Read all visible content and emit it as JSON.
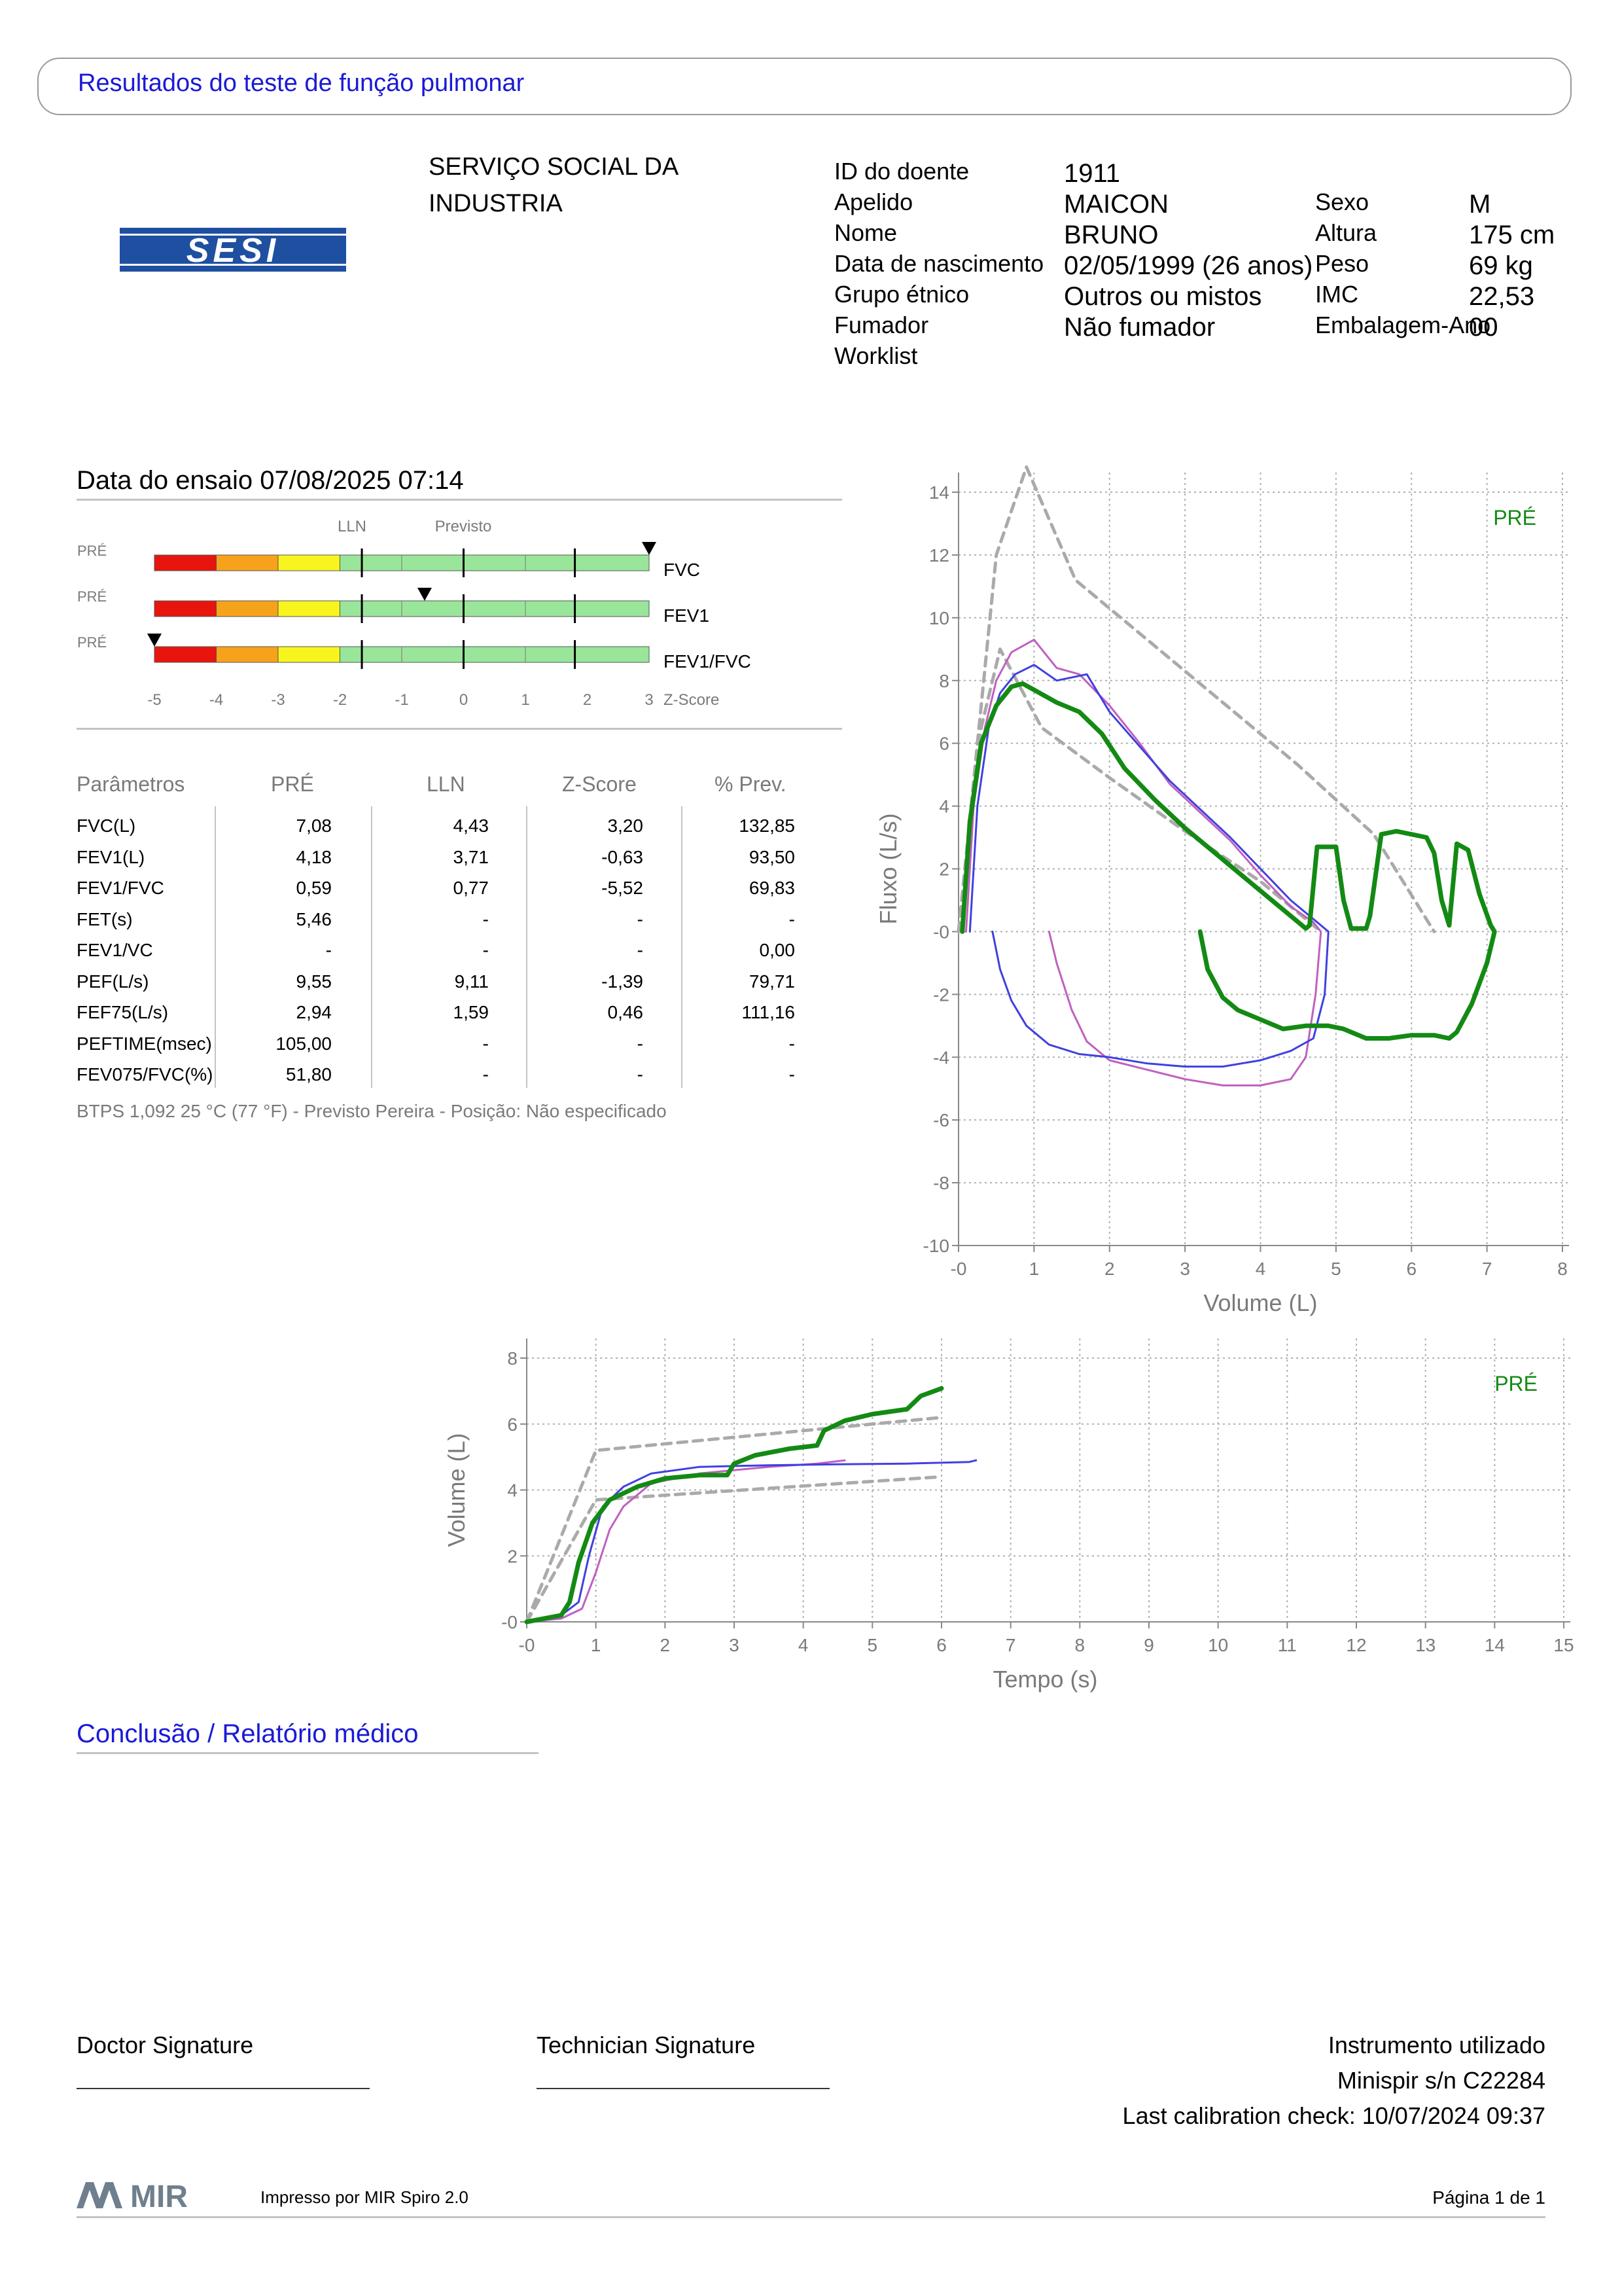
{
  "header": {
    "title": "Resultados do teste de função pulmonar"
  },
  "logo": {
    "text": "SESI",
    "color": "#1e4fa0"
  },
  "organization": {
    "line1": "SERVIÇO SOCIAL DA",
    "line2": "INDUSTRIA"
  },
  "patient": {
    "left_labels": [
      "ID do doente",
      "Apelido",
      "Nome",
      "Data de nascimento",
      "Grupo étnico",
      "Fumador",
      "Worklist"
    ],
    "left_values": [
      "1911",
      "MAICON",
      "BRUNO",
      "02/05/1999 (26 anos)",
      "Outros ou mistos",
      "Não fumador",
      ""
    ],
    "right_labels": [
      "Sexo",
      "Altura",
      "Peso",
      "IMC",
      "Embalagem-Ano"
    ],
    "right_values": [
      "M",
      "175 cm",
      "69 kg",
      "22,53",
      "00"
    ]
  },
  "test": {
    "date_label": "Data do ensaio 07/08/2025 07:14"
  },
  "zscore": {
    "lln_label": "LLN",
    "pred_label": "Previsto",
    "axis_title": "Z-Score",
    "ticks": [
      "-5",
      "-4",
      "-3",
      "-2",
      "-1",
      "0",
      "1",
      "2",
      "3"
    ],
    "rows": [
      {
        "phase": "PRÉ",
        "name": "FVC",
        "zscore": 3.2
      },
      {
        "phase": "PRÉ",
        "name": "FEV1",
        "zscore": -0.63
      },
      {
        "phase": "PRÉ",
        "name": "FEV1/FVC",
        "zscore": -5.52
      }
    ],
    "colors": {
      "red": "#e8150e",
      "orange": "#f7a21b",
      "yellow": "#f8f51e",
      "green": "#99e69a"
    }
  },
  "params": {
    "headers": [
      "Parâmetros",
      "PRÉ",
      "LLN",
      "Z-Score",
      "% Prev."
    ],
    "rows": [
      {
        "name": "FVC(L)",
        "pre": "7,08",
        "lln": "4,43",
        "z": "3,20",
        "prev": "132,85"
      },
      {
        "name": "FEV1(L)",
        "pre": "4,18",
        "lln": "3,71",
        "z": "-0,63",
        "prev": "93,50"
      },
      {
        "name": "FEV1/FVC",
        "pre": "0,59",
        "lln": "0,77",
        "z": "-5,52",
        "prev": "69,83"
      },
      {
        "name": "FET(s)",
        "pre": "5,46",
        "lln": "-",
        "z": "-",
        "prev": "-"
      },
      {
        "name": "FEV1/VC",
        "pre": "-",
        "lln": "-",
        "z": "-",
        "prev": "0,00"
      },
      {
        "name": "PEF(L/s)",
        "pre": "9,55",
        "lln": "9,11",
        "z": "-1,39",
        "prev": "79,71"
      },
      {
        "name": "FEF75(L/s)",
        "pre": "2,94",
        "lln": "1,59",
        "z": "0,46",
        "prev": "111,16"
      },
      {
        "name": "PEFTIME(msec)",
        "pre": "105,00",
        "lln": "-",
        "z": "-",
        "prev": "-"
      },
      {
        "name": "FEV075/FVC(%)",
        "pre": "51,80",
        "lln": "-",
        "z": "-",
        "prev": "-"
      }
    ]
  },
  "btps": "BTPS 1,092 25 °C (77 °F) - Previsto Pereira - Posição: Não especificado",
  "chart_data": [
    {
      "type": "line",
      "title": "",
      "xlabel": "Volume (L)",
      "ylabel": "Fluxo (L/s)",
      "xlim": [
        0,
        8
      ],
      "ylim": [
        -10,
        14
      ],
      "xticks": [
        "-0",
        "1",
        "2",
        "3",
        "4",
        "5",
        "6",
        "7",
        "8"
      ],
      "yticks": [
        "-10",
        "-8",
        "-6",
        "-4",
        "-2",
        "-0",
        "2",
        "4",
        "6",
        "8",
        "10",
        "12",
        "14"
      ],
      "annotation": "PRÉ",
      "grid": true,
      "series": [
        {
          "color": "#aaaaaa",
          "dashed": true,
          "x": [
            0,
            0.5,
            0.9,
            1.55,
            2.5,
            3.5,
            4.5,
            5.5,
            6.3
          ],
          "y": [
            0,
            12,
            14.8,
            11.2,
            9.3,
            7.3,
            5.3,
            3.1,
            0
          ]
        },
        {
          "color": "#aaaaaa",
          "dashed": true,
          "x": [
            0,
            0.3,
            0.55,
            1.1,
            2.0,
            3.0,
            4.0,
            4.8
          ],
          "y": [
            0,
            6.5,
            9.0,
            6.5,
            4.9,
            3.2,
            1.6,
            0
          ]
        },
        {
          "color": "#c060c0",
          "x": [
            0.1,
            0.2,
            0.35,
            0.5,
            0.7,
            1.0,
            1.3,
            1.6,
            2.0,
            2.4,
            2.8,
            3.2,
            3.6,
            4.0,
            4.4,
            4.7,
            4.8,
            4.73,
            4.6,
            4.4,
            4.0,
            3.5,
            3.0,
            2.5,
            2.0,
            1.7,
            1.5,
            1.3,
            1.2
          ],
          "y": [
            0,
            4,
            6.5,
            8.0,
            8.9,
            9.3,
            8.4,
            8.2,
            7.2,
            6.0,
            4.7,
            3.8,
            2.9,
            1.8,
            0.8,
            0.3,
            0,
            -2.0,
            -4.0,
            -4.7,
            -4.9,
            -4.9,
            -4.7,
            -4.4,
            -4.1,
            -3.5,
            -2.5,
            -1.0,
            0
          ]
        },
        {
          "color": "#4040e0",
          "x": [
            0.15,
            0.25,
            0.4,
            0.55,
            0.75,
            1.0,
            1.3,
            1.7,
            2.0,
            2.4,
            2.8,
            3.2,
            3.6,
            4.0,
            4.4,
            4.7,
            4.9,
            4.85,
            4.7,
            4.4,
            4.0,
            3.5,
            3.0,
            2.5,
            2.0,
            1.6,
            1.2,
            0.9,
            0.7,
            0.55,
            0.45
          ],
          "y": [
            0,
            4,
            6.5,
            7.6,
            8.2,
            8.5,
            8.0,
            8.2,
            7.0,
            5.9,
            4.8,
            3.9,
            3.0,
            2.0,
            1.0,
            0.4,
            0,
            -2.0,
            -3.4,
            -3.8,
            -4.1,
            -4.3,
            -4.3,
            -4.2,
            -4.0,
            -3.9,
            -3.6,
            -3.0,
            -2.2,
            -1.2,
            0
          ]
        },
        {
          "color": "#138a13",
          "bold": true,
          "x": [
            0.05,
            0.15,
            0.3,
            0.5,
            0.7,
            0.85,
            1.0,
            1.3,
            1.6,
            1.9,
            2.2,
            2.6,
            3.0,
            3.4,
            3.8,
            4.2,
            4.4,
            4.5,
            4.6,
            4.65,
            4.75,
            5.0,
            5.1,
            5.2,
            5.4,
            5.45,
            5.6,
            5.8,
            6.2,
            6.3,
            6.4,
            6.5,
            6.6,
            6.75,
            6.9,
            7.05,
            7.1,
            7.0,
            6.8,
            6.6,
            6.5,
            6.3,
            6.0,
            5.7,
            5.4,
            5.1,
            4.9,
            4.6,
            4.3,
            4.0,
            3.7,
            3.5,
            3.3,
            3.2
          ],
          "y": [
            0,
            3.5,
            6.0,
            7.2,
            7.8,
            7.9,
            7.7,
            7.3,
            7.0,
            6.3,
            5.2,
            4.2,
            3.3,
            2.5,
            1.7,
            0.9,
            0.5,
            0.3,
            0.1,
            0.2,
            2.7,
            2.7,
            1.0,
            0.1,
            0.1,
            0.5,
            3.1,
            3.2,
            3.0,
            2.5,
            1.0,
            0.2,
            2.8,
            2.6,
            1.2,
            0.2,
            0,
            -1.0,
            -2.3,
            -3.2,
            -3.4,
            -3.3,
            -3.3,
            -3.4,
            -3.4,
            -3.1,
            -3.0,
            -3.0,
            -3.1,
            -2.8,
            -2.5,
            -2.1,
            -1.2,
            0
          ]
        }
      ]
    },
    {
      "type": "line",
      "title": "",
      "xlabel": "Tempo (s)",
      "ylabel": "Volume (L)",
      "xlim": [
        0,
        15
      ],
      "ylim": [
        0,
        8
      ],
      "xticks": [
        "-0",
        "1",
        "2",
        "3",
        "4",
        "5",
        "6",
        "7",
        "8",
        "9",
        "10",
        "11",
        "12",
        "13",
        "14",
        "15"
      ],
      "yticks": [
        "-0",
        "2",
        "4",
        "6",
        "8"
      ],
      "annotation": "PRÉ",
      "grid": true,
      "series": [
        {
          "color": "#aaaaaa",
          "dashed": true,
          "x": [
            0,
            1,
            6
          ],
          "y": [
            0,
            5.2,
            6.2
          ]
        },
        {
          "color": "#aaaaaa",
          "dashed": true,
          "x": [
            0,
            1,
            6
          ],
          "y": [
            0,
            3.7,
            4.4
          ]
        },
        {
          "color": "#c060c0",
          "x": [
            0,
            0.5,
            0.8,
            1.0,
            1.2,
            1.4,
            1.8,
            2.5,
            3.5,
            4.2,
            4.6
          ],
          "y": [
            0,
            0.1,
            0.4,
            1.5,
            2.8,
            3.5,
            4.2,
            4.5,
            4.7,
            4.8,
            4.9
          ]
        },
        {
          "color": "#4040e0",
          "x": [
            0,
            0.5,
            0.75,
            0.9,
            1.1,
            1.4,
            1.8,
            2.5,
            3.5,
            4.5,
            5.5,
            6.4,
            6.5
          ],
          "y": [
            0,
            0.2,
            0.6,
            2.0,
            3.5,
            4.1,
            4.5,
            4.7,
            4.75,
            4.78,
            4.8,
            4.85,
            4.9
          ]
        },
        {
          "color": "#138a13",
          "bold": true,
          "x": [
            0,
            0.5,
            0.62,
            0.75,
            0.95,
            1.2,
            1.6,
            2.0,
            2.5,
            2.9,
            3.0,
            3.3,
            3.8,
            4.2,
            4.3,
            4.6,
            5.0,
            5.5,
            5.7,
            6.0
          ],
          "y": [
            0,
            0.2,
            0.6,
            1.8,
            3.0,
            3.7,
            4.1,
            4.35,
            4.45,
            4.45,
            4.8,
            5.05,
            5.25,
            5.35,
            5.8,
            6.1,
            6.3,
            6.45,
            6.85,
            7.08
          ]
        }
      ]
    }
  ],
  "conclusion": {
    "title": "Conclusão / Relatório médico"
  },
  "signatures": {
    "doctor": "Doctor Signature",
    "technician": "Technician Signature"
  },
  "instrument": {
    "line1": "Instrumento utilizado",
    "line2": "Minispir s/n C22284",
    "line3": "Last calibration check: 10/07/2024 09:37"
  },
  "footer": {
    "brand": "MIR",
    "printed_by": "Impresso por MIR Spiro 2.0",
    "page": "Página 1 de 1"
  }
}
